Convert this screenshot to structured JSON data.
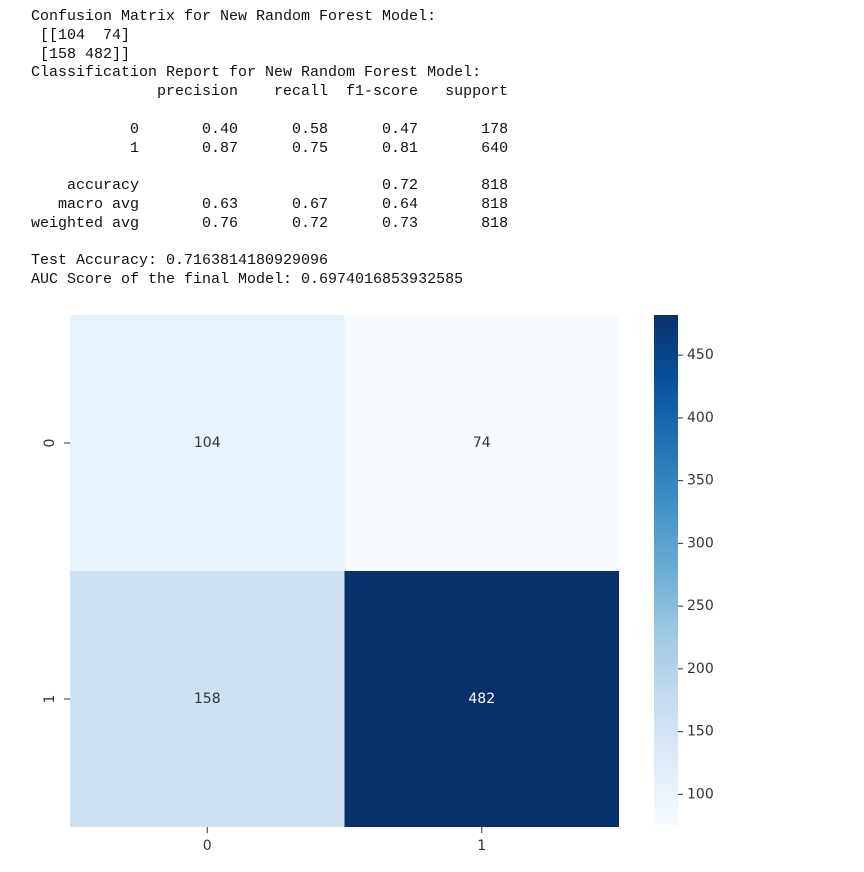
{
  "output_blocks": [
    [
      "Confusion Matrix for New Random Forest Model:",
      " [[104  74]",
      " [158 482]]",
      "Classification Report for New Random Forest Model:",
      "              precision    recall  f1-score   support"
    ],
    [
      "           0       0.40      0.58      0.47       178",
      "           1       0.87      0.75      0.81       640"
    ],
    [
      "    accuracy                           0.72       818",
      "   macro avg       0.63      0.67      0.64       818",
      "weighted avg       0.76      0.72      0.73       818"
    ],
    [
      "Test Accuracy: 0.7163814180929096",
      "AUC Score of the final Model: 0.6974016853932585"
    ]
  ],
  "chart_data": {
    "type": "heatmap",
    "x": [
      "0",
      "1"
    ],
    "y": [
      "0",
      "1"
    ],
    "values": [
      [
        104,
        74
      ],
      [
        158,
        482
      ]
    ],
    "colormap": "Blues",
    "clim": [
      74,
      482
    ],
    "cticks": [
      100,
      150,
      200,
      250,
      300,
      350,
      400,
      450
    ]
  }
}
